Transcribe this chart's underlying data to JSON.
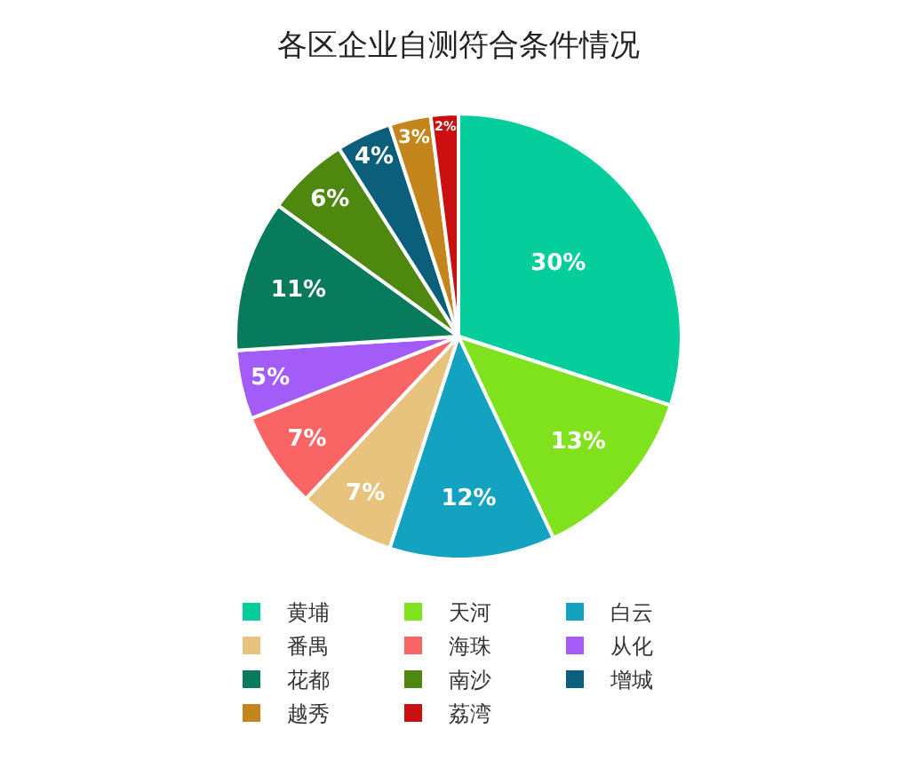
{
  "chart_data": {
    "type": "pie",
    "title": "各区企业自测符合条件情况",
    "categories": [
      "黄埔",
      "天河",
      "白云",
      "番禺",
      "海珠",
      "从化",
      "花都",
      "南沙",
      "增城",
      "越秀",
      "荔湾"
    ],
    "values": [
      30,
      13,
      12,
      7,
      7,
      5,
      11,
      6,
      4,
      3,
      2
    ],
    "value_labels": [
      "30%",
      "13%",
      "12%",
      "7%",
      "7%",
      "5%",
      "11%",
      "6%",
      "4%",
      "3%",
      "2%"
    ],
    "colors": [
      "#05cd9c",
      "#80e11d",
      "#13a2bf",
      "#e8c37e",
      "#f96464",
      "#a35cf7",
      "#077b5c",
      "#4e880e",
      "#0c5f7a",
      "#c4861c",
      "#c90f0f"
    ],
    "legend": "bottom"
  }
}
